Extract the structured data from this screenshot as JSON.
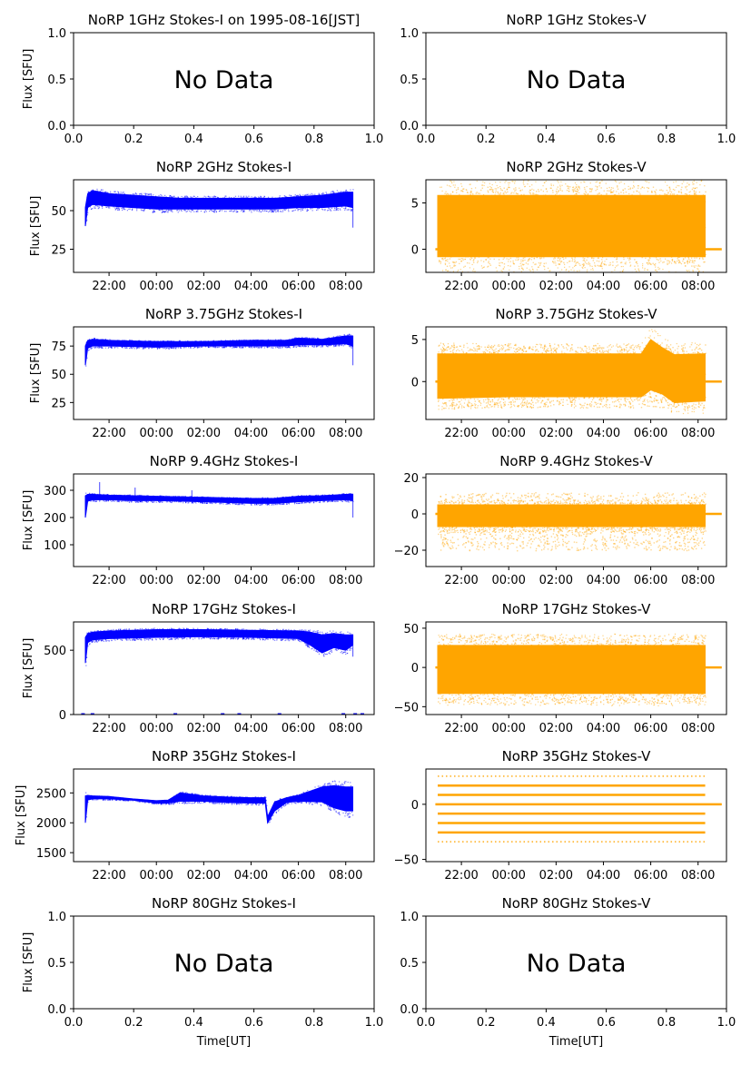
{
  "figure": {
    "xlabel_left": "Time[UT]",
    "xlabel_right": "Time[UT]"
  },
  "colors": {
    "stokes_i": "#0000ff",
    "stokes_v": "#ffa500"
  },
  "chart_data": [
    {
      "type": "scatter",
      "title": "NoRP 1GHz Stokes-I on 1995-08-16[JST]",
      "ylabel": "Flux [SFU]",
      "no_data": true,
      "no_data_text": "No Data",
      "xlim": [
        0,
        1
      ],
      "ylim": [
        0,
        1
      ],
      "x_ticks": [
        0,
        0.2,
        0.4,
        0.6,
        0.8,
        1.0
      ],
      "x_tick_labels": [
        "0.0",
        "0.2",
        "0.4",
        "0.6",
        "0.8",
        "1.0"
      ],
      "y_ticks": [
        0,
        0.5,
        1.0
      ],
      "y_tick_labels": [
        "0.0",
        "0.5",
        "1.0"
      ],
      "series": []
    },
    {
      "type": "scatter",
      "title": "NoRP 1GHz Stokes-V",
      "ylabel": "",
      "no_data": true,
      "no_data_text": "No Data",
      "xlim": [
        0,
        1
      ],
      "ylim": [
        0,
        1
      ],
      "x_ticks": [
        0,
        0.2,
        0.4,
        0.6,
        0.8,
        1.0
      ],
      "x_tick_labels": [
        "0.0",
        "0.2",
        "0.4",
        "0.6",
        "0.8",
        "1.0"
      ],
      "y_ticks": [
        0,
        0.5,
        1.0
      ],
      "y_tick_labels": [
        "0.0",
        "0.5",
        "1.0"
      ],
      "series": []
    },
    {
      "type": "scatter",
      "title": "NoRP 2GHz Stokes-I",
      "ylabel": "Flux [SFU]",
      "no_data": false,
      "xlim": [
        20.5,
        33.2
      ],
      "ylim": [
        10,
        70
      ],
      "x_ticks": [
        22,
        24,
        26,
        28,
        30,
        32
      ],
      "x_tick_labels": [
        "22:00",
        "00:00",
        "02:00",
        "04:00",
        "06:00",
        "08:00"
      ],
      "y_ticks": [
        25,
        50
      ],
      "y_tick_labels": [
        "25",
        "50"
      ],
      "series": [
        {
          "kind": "band",
          "color": "#0000ff",
          "x": [
            21.0,
            21.1,
            21.3,
            22,
            23,
            24,
            25,
            26,
            27,
            28,
            29,
            30,
            31,
            32,
            32.3
          ],
          "lower": [
            40,
            52,
            54,
            53,
            52,
            51,
            51,
            51,
            51,
            51,
            51,
            52,
            52,
            53,
            52
          ],
          "upper": [
            52,
            61,
            63,
            61,
            60,
            59,
            58,
            58,
            58,
            58,
            58,
            59,
            60,
            62,
            62
          ],
          "spike_x": [
            32.3
          ],
          "spike_lo": [
            39
          ]
        }
      ]
    },
    {
      "type": "scatter",
      "title": "NoRP 2GHz Stokes-V",
      "ylabel": "",
      "no_data": false,
      "xlim": [
        20.5,
        33.2
      ],
      "ylim": [
        -2.5,
        7.5
      ],
      "x_ticks": [
        22,
        24,
        26,
        28,
        30,
        32
      ],
      "x_tick_labels": [
        "22:00",
        "00:00",
        "02:00",
        "04:00",
        "06:00",
        "08:00"
      ],
      "y_ticks": [
        0,
        5
      ],
      "y_tick_labels": [
        "0",
        "5"
      ],
      "series": [
        {
          "kind": "band",
          "color": "#ffa500",
          "x": [
            21.0,
            24,
            28,
            32.3
          ],
          "lower": [
            -0.8,
            -0.8,
            -0.8,
            -0.8
          ],
          "upper": [
            5.8,
            5.8,
            5.8,
            5.8
          ],
          "scatter_lo": -1.8,
          "scatter_hi": 6.8,
          "flat_x": [
            20.9,
            33.0
          ],
          "flat_y": 0
        }
      ]
    },
    {
      "type": "scatter",
      "title": "NoRP 3.75GHz Stokes-I",
      "ylabel": "Flux [SFU]",
      "no_data": false,
      "xlim": [
        20.5,
        33.2
      ],
      "ylim": [
        10,
        92
      ],
      "x_ticks": [
        22,
        24,
        26,
        28,
        30,
        32
      ],
      "x_tick_labels": [
        "22:00",
        "00:00",
        "02:00",
        "04:00",
        "06:00",
        "08:00"
      ],
      "y_ticks": [
        25,
        50,
        75
      ],
      "y_tick_labels": [
        "25",
        "50",
        "75"
      ],
      "series": [
        {
          "kind": "band",
          "color": "#0000ff",
          "x": [
            21.0,
            21.1,
            21.3,
            22,
            24,
            26,
            28,
            29.5,
            30,
            31,
            32,
            32.3
          ],
          "lower": [
            58,
            73,
            75,
            75,
            74,
            75,
            75,
            75,
            76,
            76,
            77,
            75
          ],
          "upper": [
            75,
            80,
            81,
            80,
            79,
            79,
            80,
            80,
            82,
            81,
            84,
            84
          ],
          "spike_x": [
            32.3
          ],
          "spike_lo": [
            58
          ]
        }
      ]
    },
    {
      "type": "scatter",
      "title": "NoRP 3.75GHz Stokes-V",
      "ylabel": "",
      "no_data": false,
      "xlim": [
        20.5,
        33.2
      ],
      "ylim": [
        -4.5,
        6.5
      ],
      "x_ticks": [
        22,
        24,
        26,
        28,
        30,
        32
      ],
      "x_tick_labels": [
        "22:00",
        "00:00",
        "02:00",
        "04:00",
        "06:00",
        "08:00"
      ],
      "y_ticks": [
        0,
        5
      ],
      "y_tick_labels": [
        "0",
        "5"
      ],
      "series": [
        {
          "kind": "band",
          "color": "#ffa500",
          "x": [
            21.0,
            24,
            28,
            29.6,
            30,
            30.5,
            31,
            32.3
          ],
          "lower": [
            -2.0,
            -1.8,
            -1.8,
            -1.8,
            -1.0,
            -1.5,
            -2.5,
            -2.3
          ],
          "upper": [
            3.3,
            3.3,
            3.3,
            3.3,
            5.0,
            4.0,
            3.2,
            3.3
          ],
          "scatter_lo": -3.0,
          "scatter_hi": 4.5,
          "flat_x": [
            20.9,
            33.0
          ],
          "flat_y": 0
        }
      ]
    },
    {
      "type": "scatter",
      "title": "NoRP 9.4GHz Stokes-I",
      "ylabel": "Flux [SFU]",
      "no_data": false,
      "xlim": [
        20.5,
        33.2
      ],
      "ylim": [
        20,
        360
      ],
      "x_ticks": [
        22,
        24,
        26,
        28,
        30,
        32
      ],
      "x_tick_labels": [
        "22:00",
        "00:00",
        "02:00",
        "04:00",
        "06:00",
        "08:00"
      ],
      "y_ticks": [
        100,
        200,
        300
      ],
      "y_tick_labels": [
        "100",
        "200",
        "300"
      ],
      "series": [
        {
          "kind": "band",
          "color": "#0000ff",
          "x": [
            21.0,
            21.1,
            21.3,
            22,
            23,
            24,
            25,
            26,
            27,
            28,
            29,
            30,
            31,
            32,
            32.3
          ],
          "lower": [
            200,
            260,
            265,
            265,
            262,
            262,
            260,
            258,
            255,
            252,
            252,
            258,
            262,
            265,
            262
          ],
          "upper": [
            280,
            285,
            285,
            282,
            280,
            278,
            276,
            274,
            272,
            270,
            270,
            278,
            280,
            285,
            285
          ],
          "spike_x": [
            21.6,
            23.1,
            25.5,
            32.3
          ],
          "spike_lo": [
            330,
            310,
            300,
            200
          ]
        }
      ]
    },
    {
      "type": "scatter",
      "title": "NoRP 9.4GHz Stokes-V",
      "ylabel": "",
      "no_data": false,
      "xlim": [
        20.5,
        33.2
      ],
      "ylim": [
        -29,
        22
      ],
      "x_ticks": [
        22,
        24,
        26,
        28,
        30,
        32
      ],
      "x_tick_labels": [
        "22:00",
        "00:00",
        "02:00",
        "04:00",
        "06:00",
        "08:00"
      ],
      "y_ticks": [
        -20,
        0,
        20
      ],
      "y_tick_labels": [
        "−20",
        "0",
        "20"
      ],
      "series": [
        {
          "kind": "band",
          "color": "#ffa500",
          "x": [
            21.0,
            24,
            28,
            32.3
          ],
          "lower": [
            -7,
            -7,
            -7,
            -7
          ],
          "upper": [
            5,
            5,
            5,
            5
          ],
          "scatter_lo": -20,
          "scatter_hi": 12,
          "flat_x": [
            20.9,
            33.0
          ],
          "flat_y": 0
        }
      ]
    },
    {
      "type": "scatter",
      "title": "NoRP 17GHz Stokes-I",
      "ylabel": "Flux [SFU]",
      "no_data": false,
      "xlim": [
        20.5,
        33.2
      ],
      "ylim": [
        0,
        720
      ],
      "x_ticks": [
        22,
        24,
        26,
        28,
        30,
        32
      ],
      "x_tick_labels": [
        "22:00",
        "00:00",
        "02:00",
        "04:00",
        "06:00",
        "08:00"
      ],
      "y_ticks": [
        0,
        500
      ],
      "y_tick_labels": [
        "0",
        "500"
      ],
      "series": [
        {
          "kind": "band",
          "color": "#0000ff",
          "x": [
            21.0,
            21.1,
            21.3,
            22,
            24,
            26,
            28,
            30,
            30.5,
            31,
            31.5,
            32,
            32.3
          ],
          "lower": [
            400,
            560,
            580,
            590,
            600,
            605,
            600,
            590,
            540,
            480,
            520,
            500,
            540
          ],
          "upper": [
            600,
            630,
            640,
            650,
            660,
            660,
            655,
            650,
            640,
            620,
            630,
            620,
            620
          ],
          "spike_x": [
            32.3
          ],
          "spike_lo": [
            450
          ],
          "dropouts": [
            20.9,
            21.3,
            24.8,
            26.8,
            27.5,
            29.2,
            31.9,
            32.4,
            32.7
          ]
        }
      ]
    },
    {
      "type": "scatter",
      "title": "NoRP 17GHz Stokes-V",
      "ylabel": "",
      "no_data": false,
      "xlim": [
        20.5,
        33.2
      ],
      "ylim": [
        -60,
        58
      ],
      "x_ticks": [
        22,
        24,
        26,
        28,
        30,
        32
      ],
      "x_tick_labels": [
        "22:00",
        "00:00",
        "02:00",
        "04:00",
        "06:00",
        "08:00"
      ],
      "y_ticks": [
        -50,
        0,
        50
      ],
      "y_tick_labels": [
        "−50",
        "0",
        "50"
      ],
      "series": [
        {
          "kind": "band",
          "color": "#ffa500",
          "x": [
            21.0,
            24,
            28,
            32.3
          ],
          "lower": [
            -33,
            -33,
            -33,
            -33
          ],
          "upper": [
            28,
            28,
            28,
            28
          ],
          "scatter_lo": -45,
          "scatter_hi": 42,
          "flat_x": [
            20.9,
            33.0
          ],
          "flat_y": 0
        }
      ]
    },
    {
      "type": "scatter",
      "title": "NoRP 35GHz Stokes-I",
      "ylabel": "Flux [SFU]",
      "no_data": false,
      "xlim": [
        20.5,
        33.2
      ],
      "ylim": [
        1350,
        2900
      ],
      "x_ticks": [
        22,
        24,
        26,
        28,
        30,
        32
      ],
      "x_tick_labels": [
        "22:00",
        "00:00",
        "02:00",
        "04:00",
        "06:00",
        "08:00"
      ],
      "y_ticks": [
        1500,
        2000,
        2500
      ],
      "y_tick_labels": [
        "1500",
        "2000",
        "2500"
      ],
      "series": [
        {
          "kind": "band",
          "color": "#0000ff",
          "x": [
            21.0,
            21.1,
            21.3,
            22,
            23,
            24,
            24.5,
            25,
            26,
            27,
            28,
            28.6,
            28.7,
            29,
            29.5,
            30,
            31,
            31.5,
            32,
            32.3
          ],
          "lower": [
            2000,
            2380,
            2400,
            2400,
            2380,
            2330,
            2330,
            2360,
            2360,
            2340,
            2330,
            2330,
            2000,
            2200,
            2340,
            2360,
            2350,
            2250,
            2200,
            2200
          ],
          "upper": [
            2450,
            2460,
            2450,
            2440,
            2400,
            2370,
            2380,
            2500,
            2450,
            2430,
            2420,
            2420,
            2100,
            2350,
            2420,
            2460,
            2600,
            2620,
            2600,
            2600
          ],
          "spike_x": [
            28.7
          ],
          "spike_lo": [
            2000
          ]
        }
      ]
    },
    {
      "type": "scatter",
      "title": "NoRP 35GHz Stokes-V",
      "ylabel": "",
      "no_data": false,
      "xlim": [
        20.5,
        33.2
      ],
      "ylim": [
        -52,
        32
      ],
      "x_ticks": [
        22,
        24,
        26,
        28,
        30,
        32
      ],
      "x_tick_labels": [
        "22:00",
        "00:00",
        "02:00",
        "04:00",
        "06:00",
        "08:00"
      ],
      "y_ticks": [
        -50,
        0
      ],
      "y_tick_labels": [
        "−50",
        "0"
      ],
      "series": [
        {
          "kind": "levels",
          "color": "#ffa500",
          "x_start": 21.0,
          "x_end": 32.3,
          "levels": [
            -25.5,
            -17,
            -8.5,
            8.5,
            17
          ],
          "sparse_levels": [
            -34,
            25.5
          ],
          "flat_x": [
            20.9,
            33.0
          ],
          "flat_y": 0
        }
      ]
    },
    {
      "type": "scatter",
      "title": "NoRP 80GHz Stokes-I",
      "ylabel": "Flux [SFU]",
      "no_data": true,
      "no_data_text": "No Data",
      "xlim": [
        0,
        1
      ],
      "ylim": [
        0,
        1
      ],
      "x_ticks": [
        0,
        0.2,
        0.4,
        0.6,
        0.8,
        1.0
      ],
      "x_tick_labels": [
        "0.0",
        "0.2",
        "0.4",
        "0.6",
        "0.8",
        "1.0"
      ],
      "y_ticks": [
        0,
        0.5,
        1.0
      ],
      "y_tick_labels": [
        "0.0",
        "0.5",
        "1.0"
      ],
      "series": []
    },
    {
      "type": "scatter",
      "title": "NoRP 80GHz Stokes-V",
      "ylabel": "",
      "no_data": true,
      "no_data_text": "No Data",
      "xlim": [
        0,
        1
      ],
      "ylim": [
        0,
        1
      ],
      "x_ticks": [
        0,
        0.2,
        0.4,
        0.6,
        0.8,
        1.0
      ],
      "x_tick_labels": [
        "0.0",
        "0.2",
        "0.4",
        "0.6",
        "0.8",
        "1.0"
      ],
      "y_ticks": [
        0,
        0.5,
        1.0
      ],
      "y_tick_labels": [
        "0.0",
        "0.5",
        "1.0"
      ],
      "series": []
    }
  ]
}
